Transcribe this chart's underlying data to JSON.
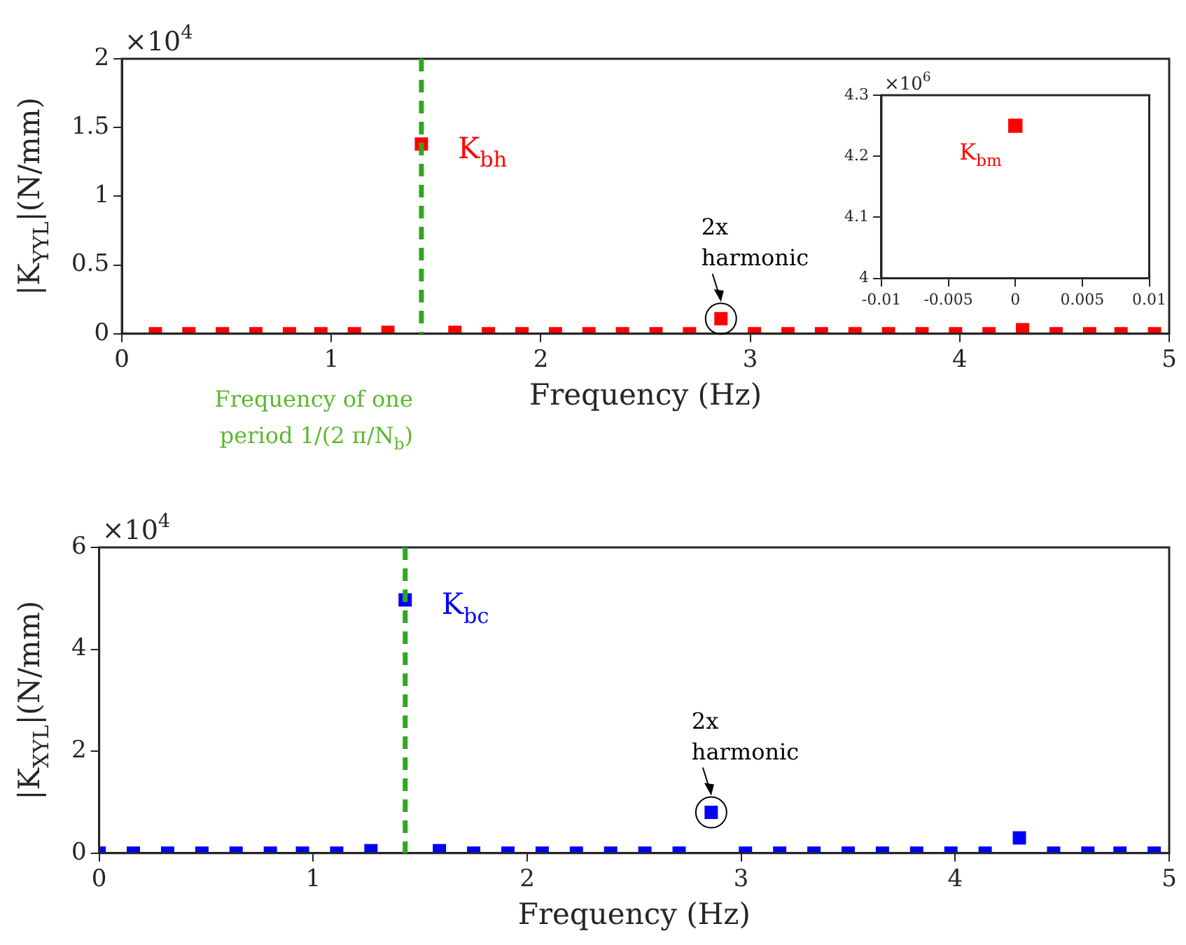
{
  "chart_data": [
    {
      "type": "scatter",
      "xlabel": "Frequency (Hz)",
      "ylabel": "|K$_{YYL}$|(N/mm)",
      "x": [
        0.16,
        0.32,
        0.48,
        0.64,
        0.8,
        0.95,
        1.11,
        1.27,
        1.43,
        1.59,
        1.75,
        1.91,
        2.07,
        2.23,
        2.39,
        2.55,
        2.71,
        2.86,
        3.02,
        3.18,
        3.34,
        3.5,
        3.66,
        3.82,
        3.98,
        4.14,
        4.3,
        4.46,
        4.62,
        4.77,
        4.93
      ],
      "series": [
        {
          "color": "#ff0000",
          "values": [
            0,
            0,
            0,
            0,
            0,
            0,
            0,
            0.01,
            1.38,
            0.01,
            0,
            0,
            0,
            0,
            0,
            0,
            0,
            0.11,
            0,
            0,
            0,
            0,
            0,
            0,
            0,
            0,
            0.03,
            0,
            0,
            0,
            0
          ]
        }
      ],
      "xlim": [
        0,
        5
      ],
      "xticks": [
        0,
        1,
        2,
        3,
        4,
        5
      ],
      "ylim": [
        0,
        2
      ],
      "yticks": [
        0,
        0.5,
        1,
        1.5,
        2
      ],
      "marker": "square",
      "grid": false,
      "legend": false,
      "ref_lines": [
        {
          "axis": "x",
          "value": 1.43,
          "label": "Frequency of one\nperiod 1/(2 π/N$_{b}$)",
          "color": "#2fa81e",
          "line_style": "dashed"
        }
      ],
      "annotations": [
        "×10$^{4}$",
        {
          "text": "K$_{bh}$",
          "x": 1.43,
          "y": 1.38
        },
        {
          "text": "2x\nharmonic",
          "x": 2.86,
          "y": 0.11
        }
      ]
    },
    {
      "type": "scatter",
      "x": [
        0
      ],
      "series": [
        {
          "color": "#ff0000",
          "values": [
            4.25
          ]
        }
      ],
      "xlim": [
        -0.01,
        0.01
      ],
      "xticks": [
        -0.01,
        -0.005,
        0,
        0.005,
        0.01
      ],
      "ylim": [
        4,
        4.3
      ],
      "yticks": [
        4,
        4.1,
        4.2,
        4.3
      ],
      "marker": "square",
      "grid": false,
      "legend": false,
      "annotations": [
        "×10$^{6}$",
        {
          "text": "K$_{bm}$",
          "x": 0,
          "y": 4.25
        }
      ]
    },
    {
      "type": "scatter",
      "xlabel": "Frequency (Hz)",
      "ylabel": "|K$_{XYL}$|(N/mm)",
      "x": [
        0,
        0.16,
        0.32,
        0.48,
        0.64,
        0.8,
        0.95,
        1.11,
        1.27,
        1.43,
        1.59,
        1.75,
        1.91,
        2.07,
        2.23,
        2.39,
        2.55,
        2.71,
        2.86,
        3.02,
        3.18,
        3.34,
        3.5,
        3.66,
        3.82,
        3.98,
        4.14,
        4.3,
        4.46,
        4.62,
        4.77,
        4.93
      ],
      "series": [
        {
          "color": "#0000ff",
          "values": [
            0,
            0,
            0,
            0,
            0,
            0,
            0,
            0,
            0.05,
            4.97,
            0.05,
            0,
            0,
            0,
            0,
            0,
            0,
            0,
            0.8,
            0,
            0,
            0,
            0,
            0,
            0,
            0,
            0,
            0.3,
            0,
            0,
            0,
            0
          ]
        }
      ],
      "xlim": [
        0,
        5
      ],
      "xticks": [
        0,
        1,
        2,
        3,
        4,
        5
      ],
      "ylim": [
        0,
        6
      ],
      "yticks": [
        0,
        2,
        4,
        6
      ],
      "marker": "square",
      "grid": false,
      "legend": false,
      "ref_lines": [
        {
          "axis": "x",
          "value": 1.43,
          "color": "#2fa81e",
          "line_style": "dashed"
        }
      ],
      "annotations": [
        "×10$^{4}$",
        {
          "text": "K$_{bc}$",
          "x": 1.43,
          "y": 4.97
        },
        {
          "text": "2x\nharmonic",
          "x": 2.86,
          "y": 0.8
        }
      ]
    }
  ]
}
